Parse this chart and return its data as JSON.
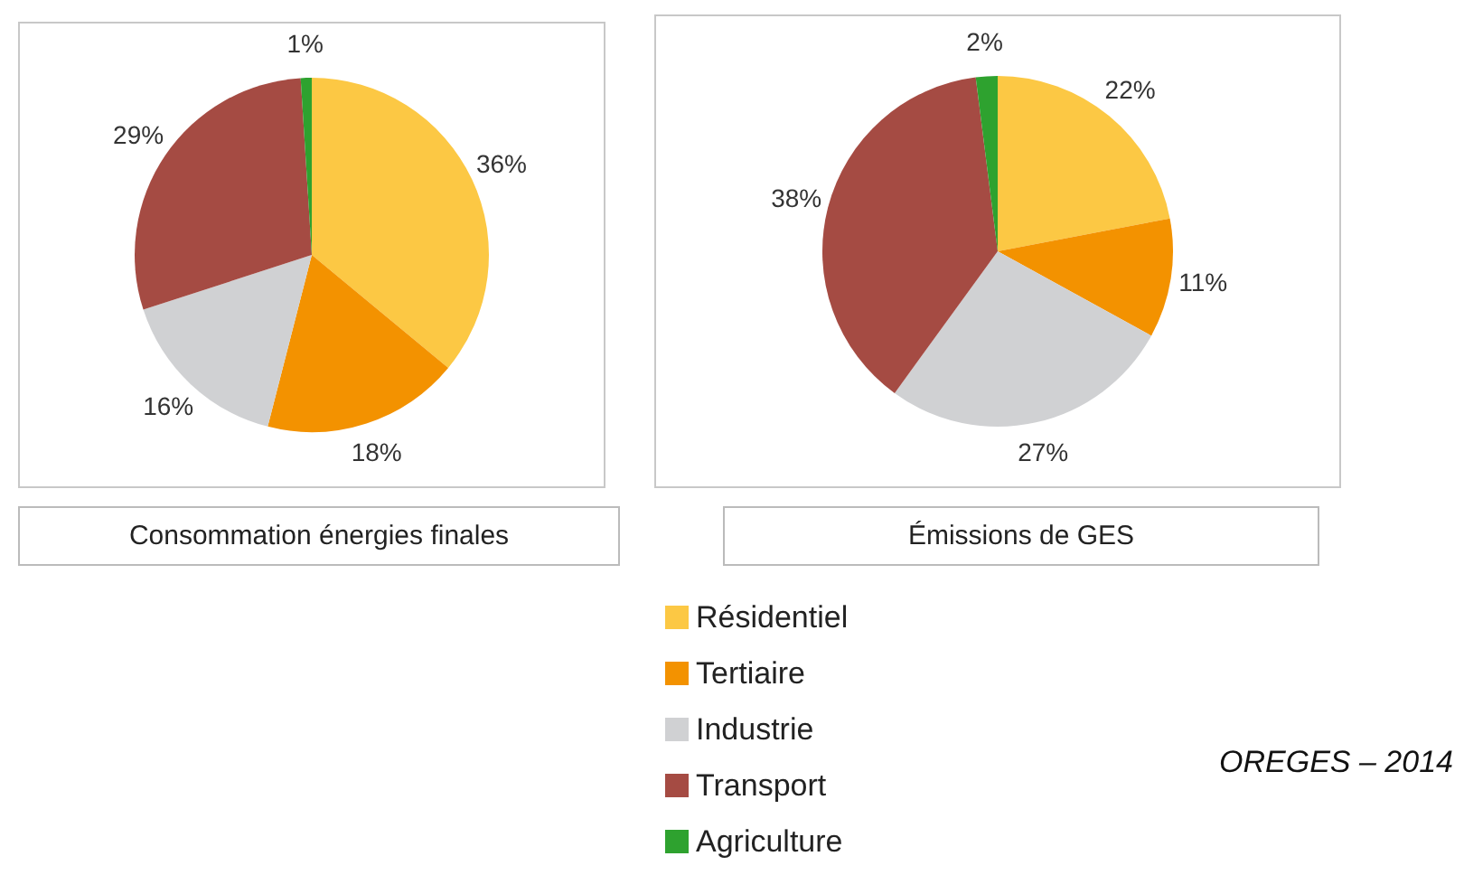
{
  "chart_data": [
    {
      "type": "pie",
      "title": "Consommation énergies finales",
      "categories": [
        "Résidentiel",
        "Tertiaire",
        "Industrie",
        "Transport",
        "Agriculture"
      ],
      "values": [
        36,
        18,
        16,
        29,
        1
      ],
      "colors": [
        "#fcc844",
        "#f39200",
        "#d0d1d3",
        "#a54b43",
        "#2ea22f"
      ],
      "value_labels": [
        "36%",
        "18%",
        "16%",
        "29%",
        "1%"
      ],
      "legend": "bottom"
    },
    {
      "type": "pie",
      "title": "Émissions de GES",
      "categories": [
        null,
        null,
        null,
        null,
        null
      ],
      "values": [
        22,
        11,
        27,
        38,
        2
      ],
      "colors": [
        "#fcc844",
        "#f39200",
        "#d0d1d3",
        "#a54b43",
        "#2ea22f"
      ],
      "value_labels": [
        "22%",
        "11%",
        "27%",
        "38%",
        "2%"
      ],
      "annotations": [
        "OREGES – 2014"
      ]
    }
  ]
}
